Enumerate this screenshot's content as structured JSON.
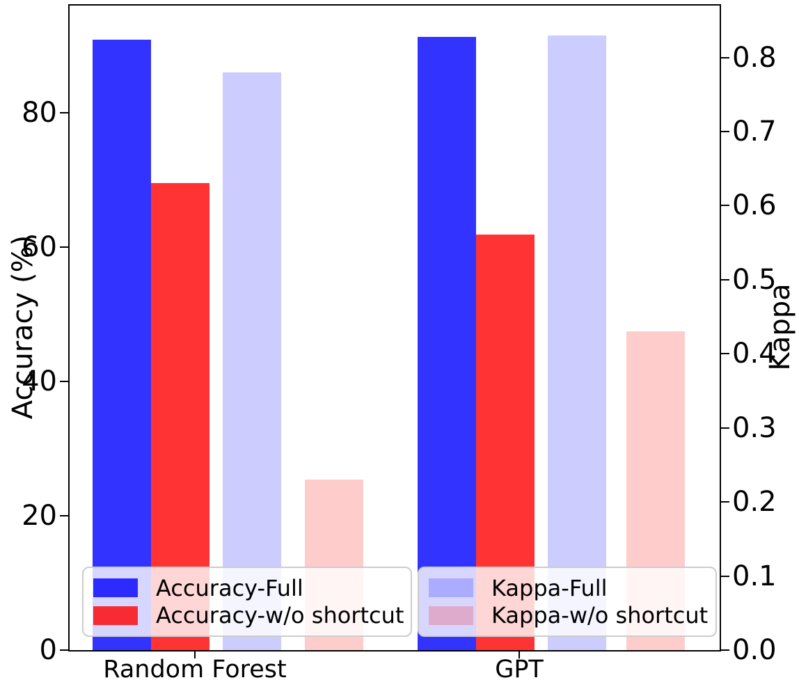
{
  "chart_data": {
    "type": "bar",
    "title": "",
    "categories": [
      "Random Forest",
      "GPT"
    ],
    "series": [
      {
        "name": "Accuracy-Full",
        "axis": "accuracy",
        "color": "rgba(0,0,255,0.8)",
        "values": [
          90.9,
          91.3
        ]
      },
      {
        "name": "Accuracy-w/o shortcut",
        "axis": "accuracy",
        "color": "rgba(255,0,0,0.8)",
        "values": [
          69.6,
          61.9
        ]
      },
      {
        "name": "Kappa-Full",
        "axis": "kappa",
        "color": "rgba(0,0,255,0.2)",
        "values": [
          0.78,
          0.83
        ]
      },
      {
        "name": "Kappa-w/o shortcut",
        "axis": "kappa",
        "color": "rgba(255,0,0,0.2)",
        "values": [
          0.23,
          0.43
        ]
      }
    ],
    "left_axis": {
      "label": "Accuracy (%)",
      "ticks": [
        "0",
        "20",
        "40",
        "60",
        "80"
      ],
      "tick_values": [
        0,
        20,
        40,
        60,
        80
      ],
      "max": 96
    },
    "right_axis": {
      "label": "Kappa",
      "ticks": [
        "0.0",
        "0.1",
        "0.2",
        "0.3",
        "0.4",
        "0.5",
        "0.6",
        "0.7",
        "0.8"
      ],
      "tick_values": [
        0,
        0.1,
        0.2,
        0.3,
        0.4,
        0.5,
        0.6,
        0.7,
        0.8
      ],
      "max": 0.87
    },
    "legend": {
      "boxes": [
        {
          "series_indexes": [
            0,
            1
          ]
        },
        {
          "series_indexes": [
            2,
            3
          ]
        }
      ],
      "position": "lower-inside"
    },
    "grid": false
  }
}
